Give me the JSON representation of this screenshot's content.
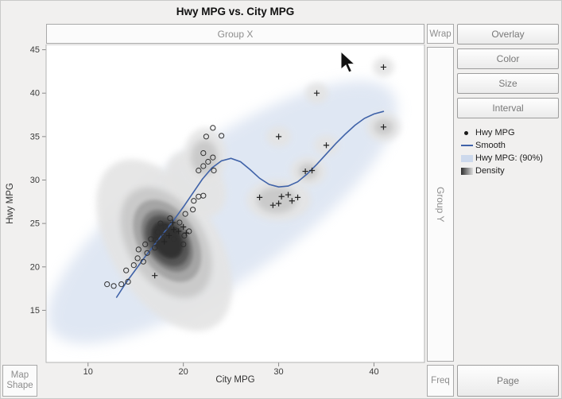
{
  "title": "Hwy MPG vs. City MPG",
  "drop_zones": {
    "group_x": "Group X",
    "wrap": "Wrap",
    "group_y": "Group Y",
    "map_shape": [
      "Map",
      "Shape"
    ],
    "freq": "Freq"
  },
  "right_panel": {
    "buttons": [
      "Overlay",
      "Color",
      "Size",
      "Interval"
    ],
    "page": "Page"
  },
  "legend": {
    "items": [
      {
        "label": "Hwy MPG",
        "swatch": "dot",
        "color": "#1a1a1a"
      },
      {
        "label": "Smooth",
        "swatch": "line",
        "color": "#3f62a8"
      },
      {
        "label": "Hwy MPG: (90%)",
        "swatch": "rect",
        "color": "#cdd9ec"
      },
      {
        "label": "Density",
        "swatch": "gradient",
        "color": "#2e2e2e"
      }
    ]
  },
  "icons": {
    "cursor": "arrow-pointer"
  },
  "chart_data": {
    "type": "scatter",
    "title": "Hwy MPG vs. City MPG",
    "xlabel": "City MPG",
    "ylabel": "Hwy MPG",
    "xlim": [
      5.6,
      45.3
    ],
    "ylim": [
      9.0,
      45.6
    ],
    "xticks": [
      10,
      20,
      30,
      40
    ],
    "yticks": [
      15,
      20,
      25,
      30,
      35,
      40,
      45
    ],
    "grid": false,
    "legend_position": "right",
    "series": [
      {
        "name": "Hwy MPG",
        "marker": "circle",
        "points": [
          [
            12,
            18
          ],
          [
            12.7,
            17.8
          ],
          [
            13.5,
            18
          ],
          [
            14.2,
            18.3
          ],
          [
            14,
            19.6
          ],
          [
            14.8,
            20.2
          ],
          [
            15.2,
            21
          ],
          [
            15.8,
            20.6
          ],
          [
            15.3,
            22
          ],
          [
            16.2,
            21.6
          ],
          [
            16,
            22.6
          ],
          [
            16.6,
            23.2
          ],
          [
            17,
            22.2
          ],
          [
            17.1,
            23.1
          ],
          [
            17.3,
            24
          ],
          [
            17.6,
            25
          ],
          [
            18,
            23.6
          ],
          [
            18.1,
            24.6
          ],
          [
            18.6,
            25.6
          ],
          [
            19,
            23.2
          ],
          [
            19.2,
            24.2
          ],
          [
            19.6,
            25.1
          ],
          [
            20,
            22.6
          ],
          [
            20.1,
            23.6
          ],
          [
            20.6,
            24.1
          ],
          [
            20.2,
            26.1
          ],
          [
            21,
            26.6
          ],
          [
            21.1,
            27.6
          ],
          [
            21.6,
            28.1
          ],
          [
            22.1,
            28.2
          ],
          [
            21.6,
            31.1
          ],
          [
            22.1,
            31.6
          ],
          [
            22.6,
            32.1
          ],
          [
            22.1,
            33.1
          ],
          [
            23.1,
            32.6
          ],
          [
            23.2,
            31.1
          ],
          [
            22.4,
            35
          ],
          [
            24,
            35.1
          ],
          [
            23.1,
            36
          ]
        ]
      },
      {
        "name": "Hwy MPG",
        "marker": "plus",
        "points": [
          [
            17,
            19
          ],
          [
            18,
            22.9
          ],
          [
            18.5,
            23.6
          ],
          [
            19,
            24.3
          ],
          [
            19.5,
            24.1
          ],
          [
            20,
            24.6
          ],
          [
            20.3,
            23.9
          ],
          [
            18.9,
            25.1
          ],
          [
            28,
            28
          ],
          [
            29.4,
            27.1
          ],
          [
            30,
            27.3
          ],
          [
            30.3,
            28.1
          ],
          [
            31,
            28.3
          ],
          [
            32,
            28
          ],
          [
            31.4,
            27.6
          ],
          [
            30,
            35
          ],
          [
            32.8,
            31
          ],
          [
            33.5,
            31.1
          ],
          [
            35,
            34
          ],
          [
            34,
            40
          ],
          [
            41,
            43
          ],
          [
            41,
            36.1
          ]
        ]
      },
      {
        "name": "Smooth",
        "type": "line",
        "color": "#3f62a8",
        "points": [
          [
            13,
            16.5
          ],
          [
            14,
            18.2
          ],
          [
            15,
            19.7
          ],
          [
            16,
            21.2
          ],
          [
            17,
            22.6
          ],
          [
            18,
            24
          ],
          [
            19,
            25.4
          ],
          [
            20,
            26.9
          ],
          [
            21,
            28.5
          ],
          [
            22,
            30.1
          ],
          [
            23,
            31.4
          ],
          [
            24,
            32.2
          ],
          [
            25,
            32.5
          ],
          [
            26,
            32.1
          ],
          [
            27,
            31.2
          ],
          [
            28,
            30.2
          ],
          [
            29,
            29.5
          ],
          [
            30,
            29.2
          ],
          [
            31,
            29.3
          ],
          [
            32,
            29.8
          ],
          [
            33,
            30.7
          ],
          [
            34,
            31.8
          ],
          [
            35,
            33
          ],
          [
            36,
            34.2
          ],
          [
            37,
            35.3
          ],
          [
            38,
            36.3
          ],
          [
            39,
            37.1
          ],
          [
            40,
            37.6
          ],
          [
            41,
            37.9
          ]
        ]
      }
    ],
    "interval": {
      "label": "Hwy MPG: (90%)",
      "color": "#cdd9ec",
      "cx": 24.1,
      "cy": 26.3,
      "rx": 21.8,
      "ry": 7.8,
      "rot": -35
    },
    "density": {
      "palette": [
        "#e4e4e4",
        "#c8c8c8",
        "#a2a2a2",
        "#7a7a7a",
        "#525252",
        "#2f2f2f"
      ],
      "blobs": [
        {
          "cx": 18,
          "cy": 22.5,
          "rx": 5.6,
          "ry": 11,
          "rot": -32,
          "level": 0
        },
        {
          "cx": 21.3,
          "cy": 29.5,
          "rx": 2.8,
          "ry": 4.2,
          "rot": -35,
          "level": 0
        },
        {
          "cx": 18.2,
          "cy": 22.8,
          "rx": 4,
          "ry": 7,
          "rot": -32,
          "level": 1
        },
        {
          "cx": 18.3,
          "cy": 23,
          "rx": 3,
          "ry": 5.2,
          "rot": -32,
          "level": 2
        },
        {
          "cx": 18.3,
          "cy": 23,
          "rx": 2.3,
          "ry": 3.9,
          "rot": -32,
          "level": 3
        },
        {
          "cx": 18.3,
          "cy": 23,
          "rx": 2,
          "ry": 3.2,
          "rot": -32,
          "level": 4
        },
        {
          "cx": 18.3,
          "cy": 23.1,
          "rx": 1.5,
          "ry": 2.3,
          "rot": -30,
          "level": 5
        },
        {
          "cx": 22.3,
          "cy": 32.8,
          "rx": 2.2,
          "ry": 3.2,
          "rot": 0,
          "level": 0
        },
        {
          "cx": 22.2,
          "cy": 32.6,
          "rx": 1.4,
          "ry": 2,
          "rot": 0,
          "level": 1
        },
        {
          "cx": 30,
          "cy": 27.7,
          "rx": 3.4,
          "ry": 2.4,
          "rot": 0,
          "level": 0
        },
        {
          "cx": 29.8,
          "cy": 27.7,
          "rx": 2.1,
          "ry": 1.5,
          "rot": 0,
          "level": 1
        },
        {
          "cx": 33.1,
          "cy": 31,
          "rx": 1.9,
          "ry": 1.7,
          "rot": 0,
          "level": 0
        },
        {
          "cx": 33.1,
          "cy": 31,
          "rx": 1,
          "ry": 0.9,
          "rot": 0,
          "level": 1
        },
        {
          "cx": 41,
          "cy": 36.1,
          "rx": 1.8,
          "ry": 1.7,
          "rot": 0,
          "level": 0
        },
        {
          "cx": 41,
          "cy": 36.1,
          "rx": 1,
          "ry": 0.9,
          "rot": 0,
          "level": 1
        },
        {
          "cx": 35,
          "cy": 34,
          "rx": 1.3,
          "ry": 1.2,
          "rot": 0,
          "level": 0
        },
        {
          "cx": 34,
          "cy": 40,
          "rx": 1.2,
          "ry": 1.2,
          "rot": 0,
          "level": 0
        },
        {
          "cx": 41,
          "cy": 43,
          "rx": 1.1,
          "ry": 1.1,
          "rot": 0,
          "level": 0
        },
        {
          "cx": 30,
          "cy": 35,
          "rx": 1.3,
          "ry": 1.2,
          "rot": 0,
          "level": 0
        }
      ]
    }
  }
}
